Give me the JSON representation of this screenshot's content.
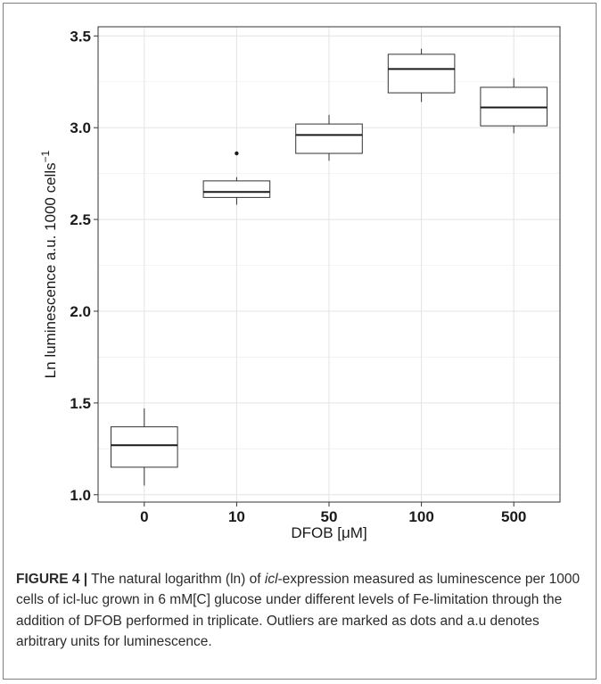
{
  "chart_data": {
    "type": "box",
    "categories": [
      "0",
      "10",
      "50",
      "100",
      "500"
    ],
    "boxes": [
      {
        "category": "0",
        "whisker_low": 1.05,
        "q1": 1.15,
        "median": 1.27,
        "q3": 1.37,
        "whisker_high": 1.47,
        "outliers": []
      },
      {
        "category": "10",
        "whisker_low": 2.58,
        "q1": 2.62,
        "median": 2.65,
        "q3": 2.71,
        "whisker_high": 2.73,
        "outliers": [
          2.86
        ]
      },
      {
        "category": "50",
        "whisker_low": 2.82,
        "q1": 2.86,
        "median": 2.96,
        "q3": 3.02,
        "whisker_high": 3.07,
        "outliers": []
      },
      {
        "category": "100",
        "whisker_low": 3.14,
        "q1": 3.19,
        "median": 3.32,
        "q3": 3.4,
        "whisker_high": 3.43,
        "outliers": []
      },
      {
        "category": "500",
        "whisker_low": 2.97,
        "q1": 3.01,
        "median": 3.11,
        "q3": 3.22,
        "whisker_high": 3.27,
        "outliers": []
      }
    ],
    "xlabel": "DFOB [μM]",
    "ylabel": "Ln luminescence a.u. 1000 cells",
    "ylabel_superscript": "−1",
    "ylim": [
      0.96,
      3.55
    ],
    "yticks": [
      "1.0",
      "1.5",
      "2.0",
      "2.5",
      "3.0",
      "3.5"
    ],
    "ytick_values": [
      1.0,
      1.5,
      2.0,
      2.5,
      3.0,
      3.5
    ],
    "grid": true
  },
  "caption": {
    "label": "FIGURE 4 |",
    "text_before": " The natural logarithm (ln) of ",
    "gene_italic": "icl",
    "text_after": "-expression measured as luminescence per 1000 cells of icl-luc grown in 6 mM[C] glucose under different levels of Fe-limitation through the addition of DFOB performed in triplicate. Outliers are marked as dots and a.u denotes arbitrary units for luminescence."
  }
}
